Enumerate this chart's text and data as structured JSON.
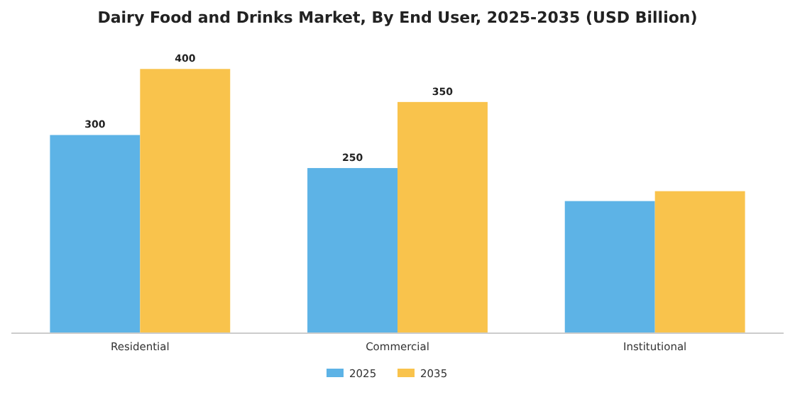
{
  "chart_data": {
    "type": "bar",
    "title": "Dairy Food and Drinks Market, By End User, 2025-2035 (USD Billion)",
    "categories": [
      "Residential",
      "Commercial",
      "Institutional"
    ],
    "series": [
      {
        "name": "2025",
        "color": "#5db3e6",
        "values": [
          300,
          250,
          200
        ],
        "value_labels": [
          "300",
          "250",
          null
        ]
      },
      {
        "name": "2035",
        "color": "#f9c34c",
        "values": [
          400,
          350,
          215
        ],
        "value_labels": [
          "400",
          "350",
          null
        ]
      }
    ],
    "legend": "bottom",
    "grid": false
  }
}
